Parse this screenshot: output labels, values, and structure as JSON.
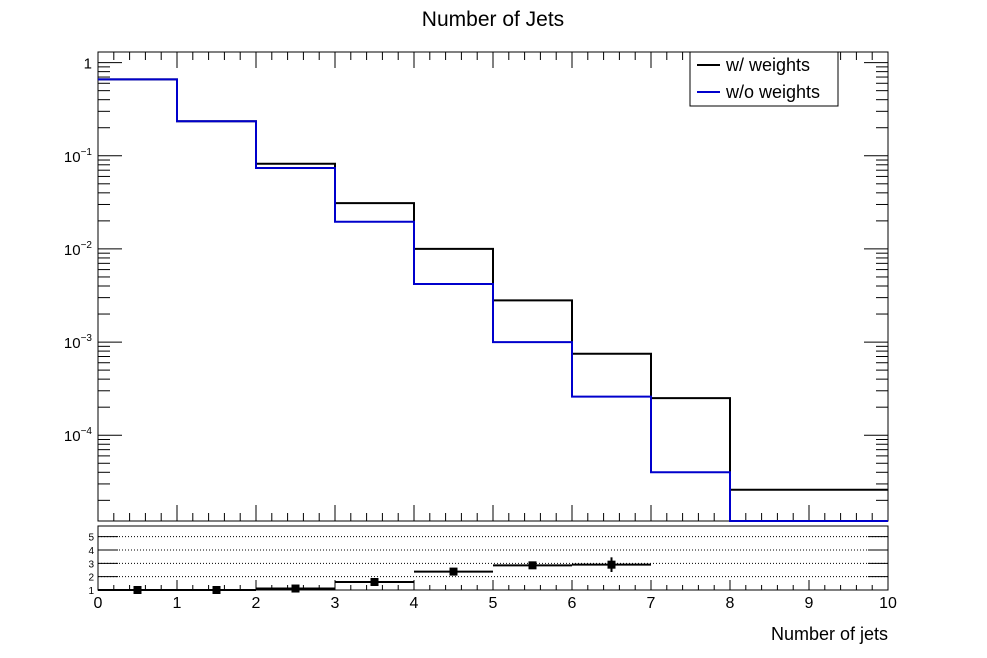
{
  "chart_data": [
    {
      "type": "line",
      "drawstyle": "steps",
      "title": "Number of Jets",
      "xlabel": "",
      "ylabel": "",
      "yscale": "log",
      "xlim": [
        0,
        10
      ],
      "ylim": [
        1.2e-05,
        1.3
      ],
      "bin_edges": [
        0,
        1,
        2,
        3,
        4,
        5,
        6,
        7,
        8,
        9,
        10
      ],
      "legend_placement": "top-right",
      "grid": false,
      "series": [
        {
          "name": "w/ weights",
          "color": "#000000",
          "values": [
            0.66,
            0.235,
            0.082,
            0.031,
            0.01,
            0.0028,
            0.00075,
            0.00025,
            2.6e-05,
            2.6e-05
          ]
        },
        {
          "name": "w/o weights",
          "color": "#0000cc",
          "values": [
            0.66,
            0.235,
            0.074,
            0.0196,
            0.0042,
            0.001,
            0.00026,
            4e-05,
            1.2e-05,
            1.2e-05
          ]
        }
      ],
      "y_tick_labels": [
        {
          "value": 1,
          "base": "1",
          "exp": ""
        },
        {
          "value": 0.1,
          "base": "10",
          "exp": "−1"
        },
        {
          "value": 0.01,
          "base": "10",
          "exp": "−2"
        },
        {
          "value": 0.001,
          "base": "10",
          "exp": "−3"
        },
        {
          "value": 0.0001,
          "base": "10",
          "exp": "−4"
        }
      ]
    },
    {
      "type": "scatter",
      "title": "",
      "xlabel": "Number of jets",
      "ylabel": "",
      "xlim": [
        0,
        10
      ],
      "ylim": [
        1,
        5.8
      ],
      "y_ticks": [
        1,
        2,
        3,
        4,
        5
      ],
      "y_tick_labels": [
        "1",
        "2",
        "3",
        "4",
        "5"
      ],
      "x_ticks": [
        0,
        1,
        2,
        3,
        4,
        5,
        6,
        7,
        8,
        9,
        10
      ],
      "x_tick_labels": [
        "0",
        "1",
        "2",
        "3",
        "4",
        "5",
        "6",
        "7",
        "8",
        "9",
        "10"
      ],
      "grid": true,
      "series": [
        {
          "name": "",
          "color": "#000000",
          "x": [
            0.5,
            1.5,
            2.5,
            3.5,
            4.5,
            5.5,
            6.5
          ],
          "y": [
            1.0,
            1.0,
            1.11,
            1.6,
            2.38,
            2.85,
            2.9
          ],
          "x_err": [
            0.5,
            0.5,
            0.5,
            0.5,
            0.5,
            0.5,
            0.5
          ],
          "y_err": [
            0.02,
            0.03,
            0.05,
            0.08,
            0.12,
            0.22,
            0.55
          ]
        }
      ]
    }
  ]
}
